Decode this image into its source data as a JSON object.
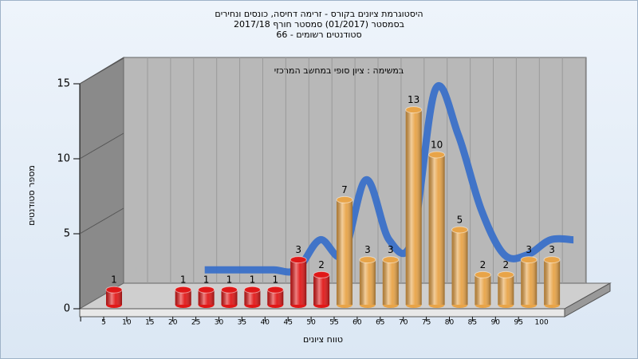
{
  "chart_data": {
    "type": "bar",
    "title": [
      "היסטוגרמת ציונים בקורס - זרימה דחיסה, כונסים ונחירים",
      "בסמסטר (01/2017) סמסטר חורף 2017/18",
      "סטודנטים רשומים - 66"
    ],
    "annotation": "במשימה : ציון סופי במחשב המרכזי",
    "x_label": "טווח ציונים",
    "y_label": "מספר סטודנטים",
    "categories": [
      "5",
      "10",
      "15",
      "20",
      "25",
      "30",
      "35",
      "40",
      "45",
      "50",
      "55",
      "60",
      "65",
      "70",
      "75",
      "80",
      "85",
      "90",
      "95",
      "100"
    ],
    "values": [
      1,
      null,
      null,
      1,
      1,
      1,
      1,
      1,
      3,
      2,
      7,
      3,
      3,
      13,
      10,
      5,
      2,
      2,
      3,
      3
    ],
    "colors": [
      "#e01818",
      null,
      null,
      "#e01818",
      "#e01818",
      "#e01818",
      "#e01818",
      "#e01818",
      "#e01818",
      "#e01818",
      "#e8a448",
      "#e8a448",
      "#e8a448",
      "#e8a448",
      "#e8a448",
      "#e8a448",
      "#e8a448",
      "#e8a448",
      "#e8a448",
      "#e8a448"
    ],
    "curve_color": "#3a70c8",
    "ylim": [
      0,
      15
    ],
    "yticks": [
      0,
      5,
      10,
      15
    ],
    "grid": true
  }
}
